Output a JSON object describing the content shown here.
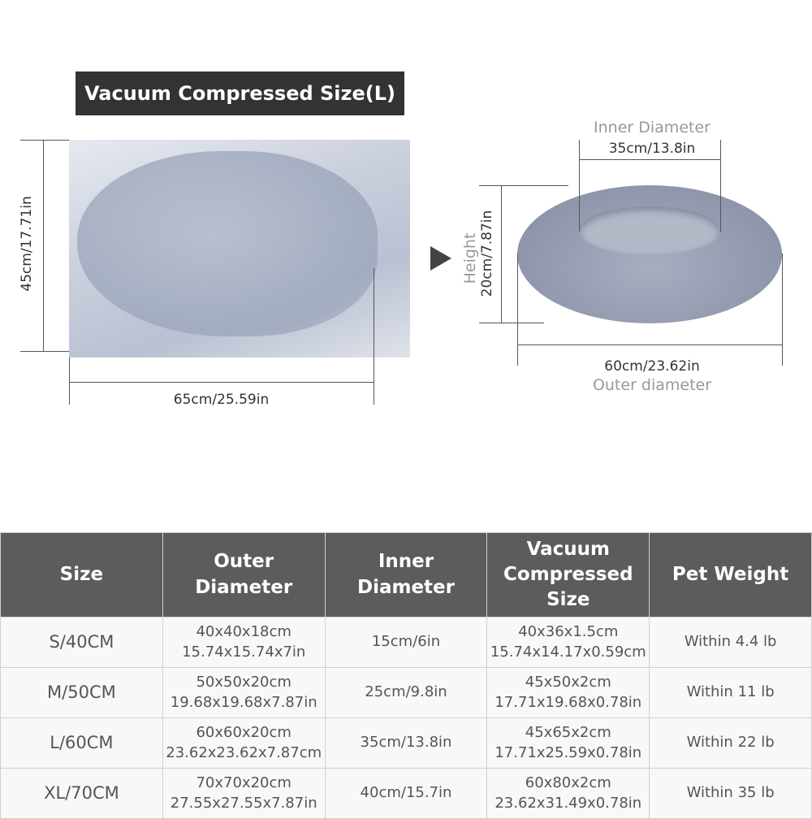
{
  "title": "Vacuum Compressed Size(L)",
  "compressed": {
    "height_label": "45cm/17.71in",
    "width_label": "65cm/25.59in"
  },
  "arrow_icon": "arrow-right-icon",
  "bed": {
    "inner_title": "Inner Diameter",
    "inner_value": "35cm/13.8in",
    "height_title": "Height",
    "height_value": "20cm/7.87in",
    "outer_value": "60cm/23.62in",
    "outer_title": "Outer diameter"
  },
  "table": {
    "headers": [
      "Size",
      "Outer Diameter",
      "Inner Diameter",
      "Vacuum Compressed Size",
      "Pet Weight"
    ],
    "rows": [
      {
        "size": "S/40CM",
        "outer_cm": "40x40x18cm",
        "outer_in": "15.74x15.74x7in",
        "inner": "15cm/6in",
        "vac_cm": "40x36x1.5cm",
        "vac_in": "15.74x14.17x0.59cm",
        "weight": "Within 4.4 lb"
      },
      {
        "size": "M/50CM",
        "outer_cm": "50x50x20cm",
        "outer_in": "19.68x19.68x7.87in",
        "inner": "25cm/9.8in",
        "vac_cm": "45x50x2cm",
        "vac_in": "17.71x19.68x0.78in",
        "weight": "Within 11 lb"
      },
      {
        "size": "L/60CM",
        "outer_cm": "60x60x20cm",
        "outer_in": "23.62x23.62x7.87cm",
        "inner": "35cm/13.8in",
        "vac_cm": "45x65x2cm",
        "vac_in": "17.71x25.59x0.78in",
        "weight": "Within 22 lb"
      },
      {
        "size": "XL/70CM",
        "outer_cm": "70x70x20cm",
        "outer_in": "27.55x27.55x7.87in",
        "inner": "40cm/15.7in",
        "vac_cm": "60x80x2cm",
        "vac_in": "23.62x31.49x0.78in",
        "weight": "Within 35 lb"
      }
    ]
  }
}
